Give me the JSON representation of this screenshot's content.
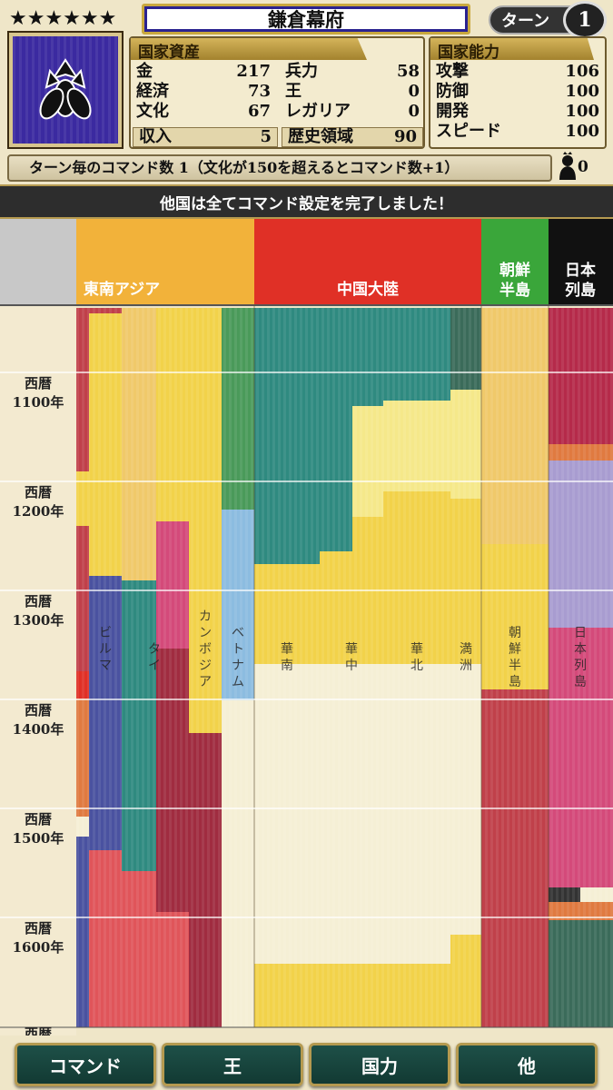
{
  "header": {
    "stars": "★★★★★★",
    "title": "鎌倉幕府",
    "turn_label": "ターン",
    "turn_number": "1"
  },
  "assets": {
    "heading": "国家資産",
    "left": [
      {
        "label": "金",
        "value": "217"
      },
      {
        "label": "経済",
        "value": "73"
      },
      {
        "label": "文化",
        "value": "67"
      }
    ],
    "right": [
      {
        "label": "兵力",
        "value": "58"
      },
      {
        "label": "王",
        "value": "0"
      },
      {
        "label": "レガリア",
        "value": "0"
      }
    ],
    "income": {
      "label": "収入",
      "value": "5"
    },
    "history": {
      "label": "歴史領域",
      "value": "90"
    }
  },
  "abilities": {
    "heading": "国家能力",
    "rows": [
      {
        "label": "攻撃",
        "value": "106"
      },
      {
        "label": "防御",
        "value": "100"
      },
      {
        "label": "開発",
        "value": "100"
      },
      {
        "label": "スピード",
        "value": "100"
      }
    ]
  },
  "command_info": "ターン毎のコマンド数 1（文化が150を超えるとコマンド数+1）",
  "king_count": "0",
  "banner": "他国は全てコマンド設定を完了しました！",
  "map": {
    "regions": [
      {
        "name": "東南アジア",
        "color": "#f2b23a"
      },
      {
        "name": "中国大陸",
        "color": "#e03026"
      },
      {
        "name": "朝鮮半島",
        "color": "#3aa63a"
      },
      {
        "name": "日本列島",
        "color": "#111111"
      }
    ],
    "years": [
      "西暦\n1100年",
      "西暦\n1200年",
      "西暦\n1300年",
      "西暦\n1400年",
      "西暦\n1500年",
      "西暦\n1600年",
      "西暦"
    ],
    "column_labels": [
      "ビルマ",
      "タイ",
      "カンボジア",
      "ベトナム",
      "華南",
      "華中",
      "華北",
      "満洲",
      "朝鮮半島",
      "日本列島"
    ],
    "colors": {
      "yellow": "#f2d24a",
      "teal": "#2f8a80",
      "cream": "#f5efd5",
      "red": "#c0404a",
      "pink": "#d44a7a",
      "blue": "#4a52a0",
      "green": "#4a9a5a",
      "lightblue": "#8cbce0",
      "crimson": "#a02c40",
      "lavender": "#a89cd0",
      "orange": "#e07a40",
      "darkteal": "#3b6b5a"
    }
  },
  "buttons": [
    "コマンド",
    "王",
    "国力",
    "他"
  ]
}
